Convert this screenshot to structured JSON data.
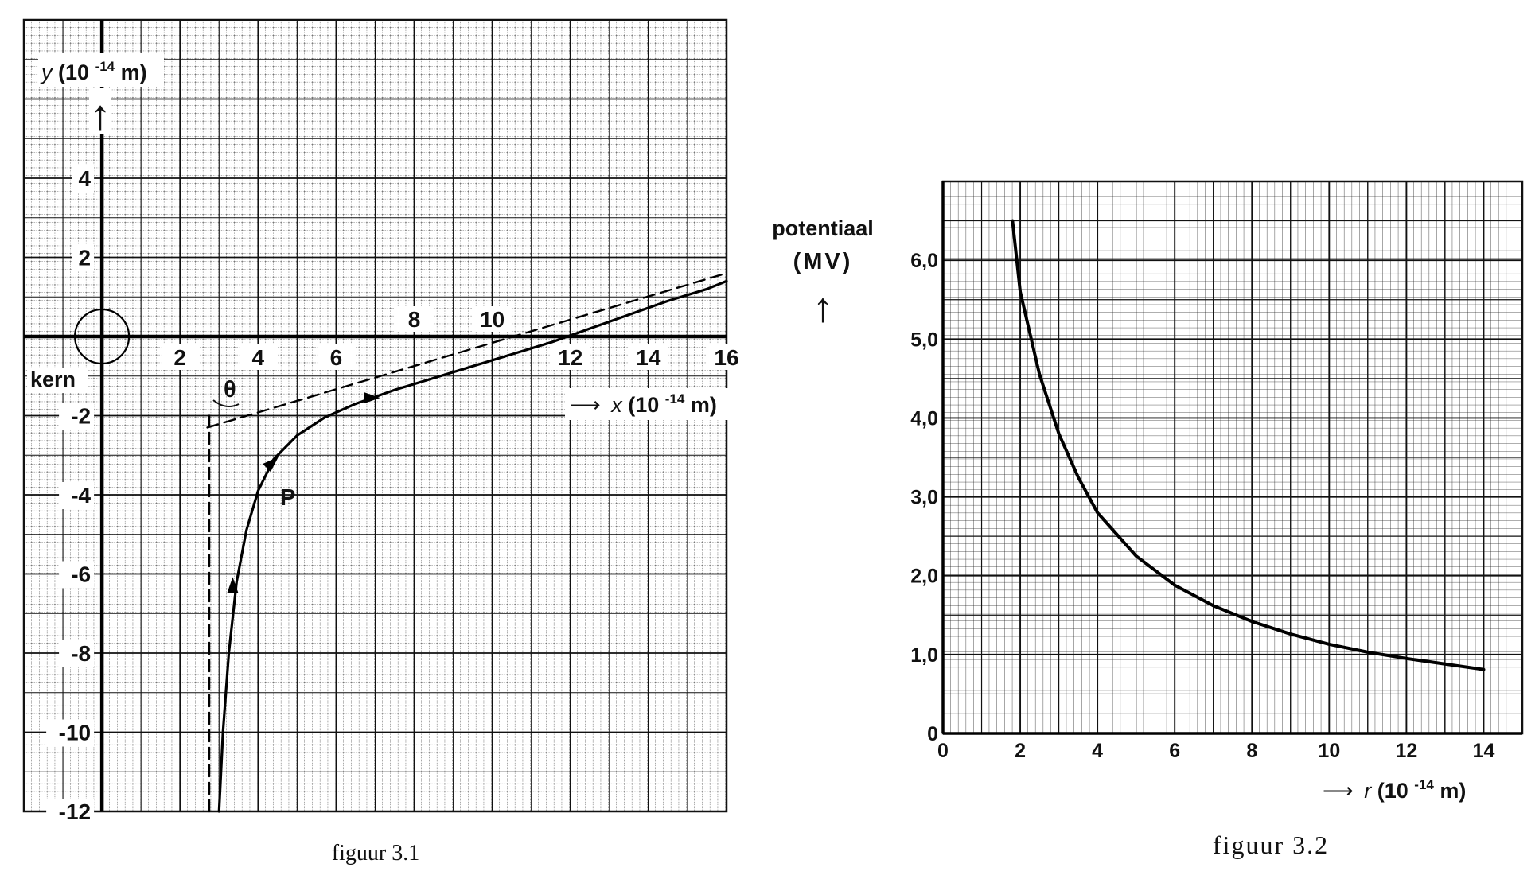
{
  "chart_data": [
    {
      "type": "line",
      "caption": "figuur 3.1",
      "xlim": [
        -2,
        16
      ],
      "ylim": [
        -12,
        8
      ],
      "x_ticks": [
        {
          "value": 2,
          "label": "2"
        },
        {
          "value": 4,
          "label": "4"
        },
        {
          "value": 6,
          "label": "6"
        },
        {
          "value": 8,
          "label": "8"
        },
        {
          "value": 10,
          "label": "10"
        },
        {
          "value": 12,
          "label": "12"
        },
        {
          "value": 14,
          "label": "14"
        },
        {
          "value": 16,
          "label": "16"
        }
      ],
      "y_ticks": [
        {
          "value": 4,
          "label": "4"
        },
        {
          "value": 2,
          "label": "2"
        },
        {
          "value": -2,
          "label": "-2"
        },
        {
          "value": -4,
          "label": "-4"
        },
        {
          "value": -6,
          "label": "-6"
        },
        {
          "value": -8,
          "label": "-8"
        },
        {
          "value": -10,
          "label": "-10"
        },
        {
          "value": -12,
          "label": "-12"
        }
      ],
      "ylabel": {
        "var": "y",
        "pre": "(10",
        "exp": "-14",
        "post": "m)"
      },
      "xlabel": {
        "arrow": "⟶",
        "var": "x",
        "pre": "(10",
        "exp": "-14",
        "post": "m)"
      },
      "up_arrow": "↑",
      "nucleus_label": "kern",
      "point_label": "P",
      "angle_label": "θ",
      "nucleus": {
        "x": 0,
        "y": 0
      },
      "point_P": {
        "x": 4.4,
        "y": -3.1
      },
      "series": [
        {
          "style": "solid",
          "x": [
            3.0,
            3.1,
            3.25,
            3.45,
            3.7,
            4.0,
            4.4,
            5.0,
            5.7,
            6.5,
            7.5,
            8.5,
            9.5,
            10.5,
            11.5,
            12.5,
            13.5,
            14.5,
            15.5,
            16.0
          ],
          "y": [
            -12.0,
            -10.0,
            -8.0,
            -6.2,
            -4.9,
            -3.9,
            -3.1,
            -2.5,
            -2.05,
            -1.7,
            -1.35,
            -1.05,
            -0.75,
            -0.45,
            -0.15,
            0.2,
            0.55,
            0.9,
            1.2,
            1.4
          ]
        },
        {
          "style": "dashed",
          "x": [
            2.7,
            16.0
          ],
          "y": [
            -2.3,
            1.6
          ]
        },
        {
          "style": "dashed",
          "x": [
            2.75,
            2.75
          ],
          "y": [
            -12.0,
            -2.0
          ]
        }
      ],
      "arrows": [
        {
          "x": 3.35,
          "y": -6.4,
          "dir": "up"
        },
        {
          "x": 4.3,
          "y": -3.3,
          "dir": "up-right"
        },
        {
          "x": 6.8,
          "y": -1.55,
          "dir": "right"
        }
      ]
    },
    {
      "type": "line",
      "caption": "figuur 3.2",
      "xlim": [
        0,
        15
      ],
      "ylim": [
        0,
        7
      ],
      "x_ticks": [
        {
          "value": 0,
          "label": "0"
        },
        {
          "value": 2,
          "label": "2"
        },
        {
          "value": 4,
          "label": "4"
        },
        {
          "value": 6,
          "label": "6"
        },
        {
          "value": 8,
          "label": "8"
        },
        {
          "value": 10,
          "label": "10"
        },
        {
          "value": 12,
          "label": "12"
        },
        {
          "value": 14,
          "label": "14"
        }
      ],
      "y_ticks": [
        {
          "value": 0,
          "label": "0"
        },
        {
          "value": 1,
          "label": "1,0"
        },
        {
          "value": 2,
          "label": "2,0"
        },
        {
          "value": 3,
          "label": "3,0"
        },
        {
          "value": 4,
          "label": "4,0"
        },
        {
          "value": 5,
          "label": "5,0"
        },
        {
          "value": 6,
          "label": "6,0"
        }
      ],
      "ylabel_line1": "potentiaal",
      "ylabel_line2": "(MV)",
      "up_arrow": "↑",
      "xlabel": {
        "arrow": "⟶",
        "var": "r",
        "pre": "(10",
        "exp": "-14",
        "post": "m)"
      },
      "series": [
        {
          "style": "solid",
          "x": [
            1.8,
            2.0,
            2.5,
            3.0,
            3.5,
            4.0,
            5.0,
            6.0,
            7.0,
            8.0,
            9.0,
            10.0,
            11.0,
            12.0,
            13.0,
            14.0
          ],
          "y": [
            6.5,
            5.6,
            4.55,
            3.8,
            3.25,
            2.8,
            2.25,
            1.88,
            1.62,
            1.42,
            1.26,
            1.13,
            1.03,
            0.95,
            0.88,
            0.81
          ]
        }
      ]
    }
  ]
}
